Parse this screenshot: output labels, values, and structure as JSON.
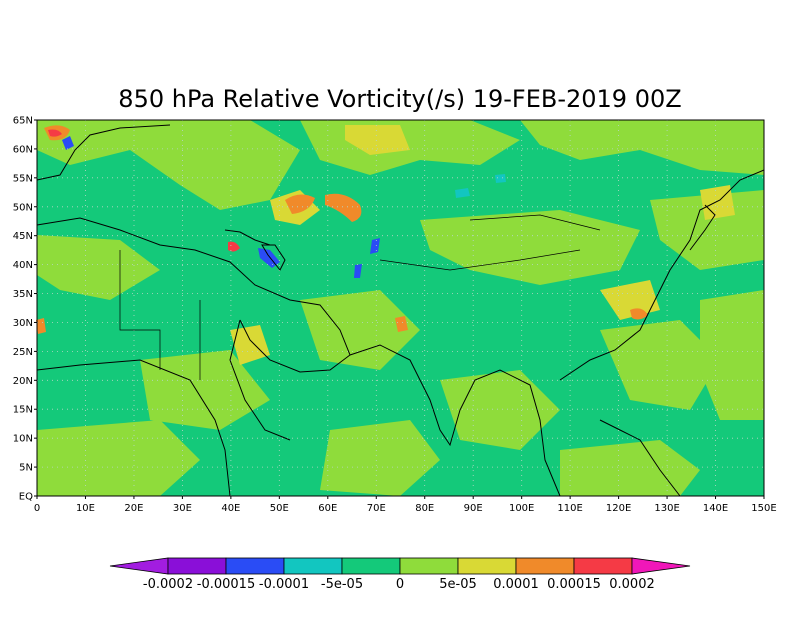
{
  "title": "850 hPa Relative Vorticity(/s) 19-FEB-2019 00Z",
  "map": {
    "x_ticks": [
      "0",
      "10E",
      "20E",
      "30E",
      "40E",
      "50E",
      "60E",
      "70E",
      "80E",
      "90E",
      "100E",
      "110E",
      "120E",
      "130E",
      "140E",
      "150E"
    ],
    "y_ticks": [
      "EQ",
      "5N",
      "10N",
      "15N",
      "20N",
      "25N",
      "30N",
      "35N",
      "40N",
      "45N",
      "50N",
      "55N",
      "60N",
      "65N"
    ],
    "lon_range": [
      0,
      150
    ],
    "lat_range": [
      0,
      65
    ],
    "background_color": "#14c97a",
    "grid": "dotted"
  },
  "colorbar": {
    "labels": [
      "-0.0002",
      "-0.00015",
      "-0.0001",
      "-5e-05",
      "0",
      "5e-05",
      "0.0001",
      "0.00015",
      "0.0002"
    ],
    "colors": [
      "#a21de0",
      "#8a0fd8",
      "#2a4cf5",
      "#12c6c0",
      "#14c97a",
      "#8fdc3b",
      "#d9d935",
      "#f08a2a",
      "#f53a45",
      "#f017b9"
    ]
  }
}
